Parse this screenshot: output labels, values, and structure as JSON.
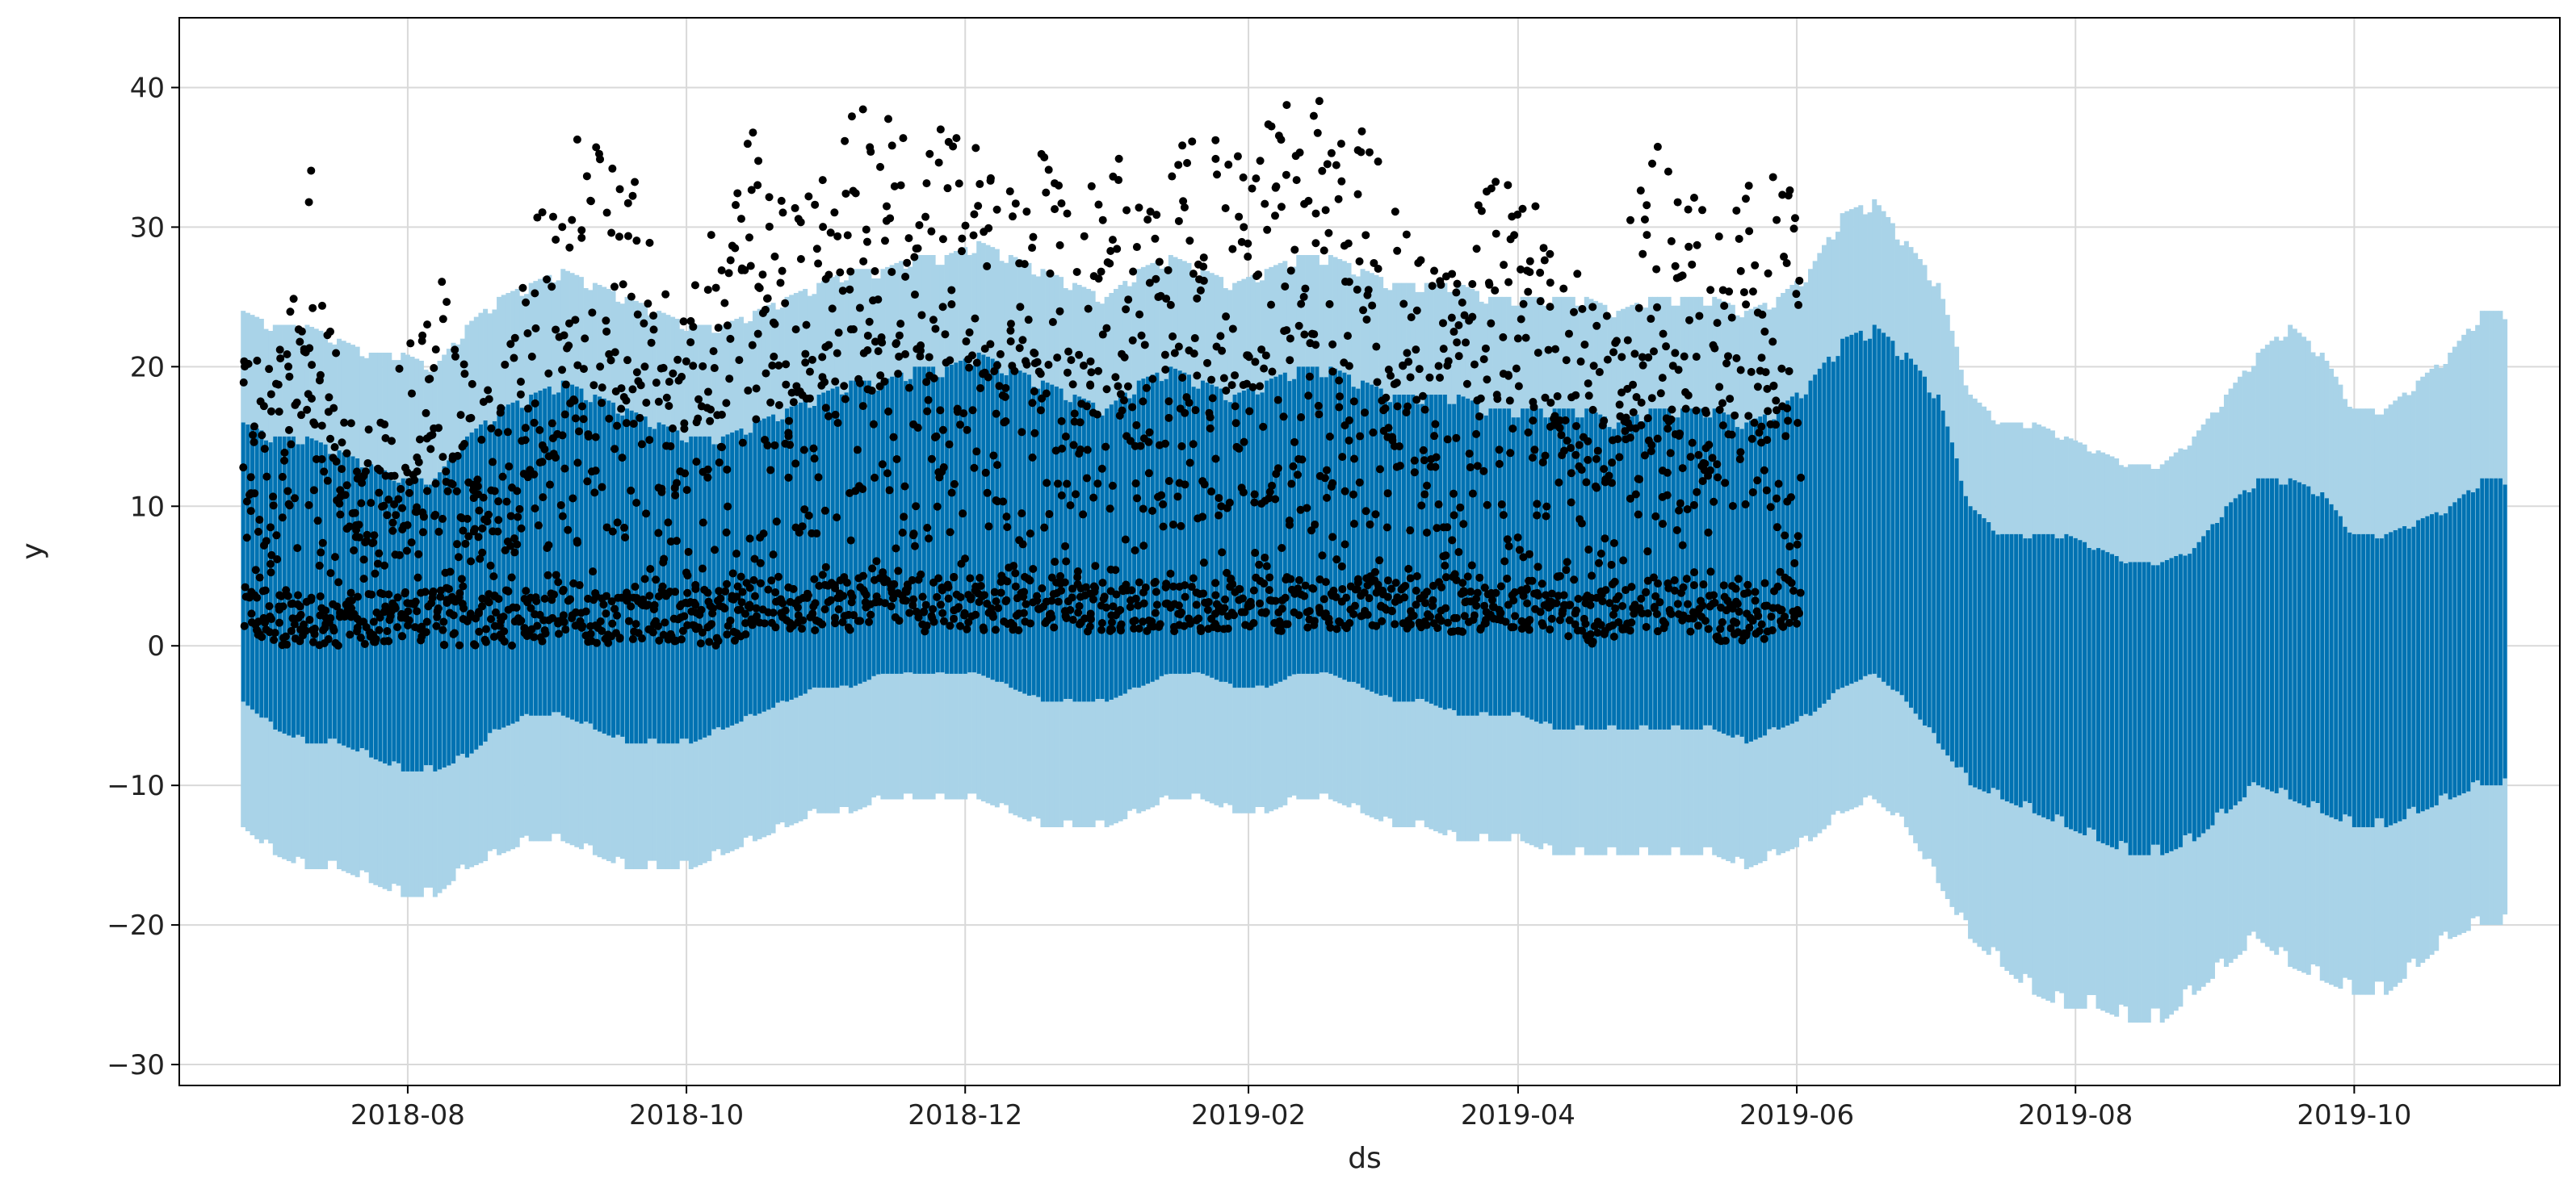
{
  "chart_data": {
    "type": "scatter",
    "title": "",
    "xlabel": "ds",
    "ylabel": "y",
    "x_axis_type": "date",
    "xlim": [
      "2018-06-12",
      "2019-11-15"
    ],
    "ylim": [
      -31.5,
      45
    ],
    "x_ticks": [
      "2018-08",
      "2018-10",
      "2018-12",
      "2019-02",
      "2019-04",
      "2019-06",
      "2019-08",
      "2019-10"
    ],
    "y_ticks": [
      40,
      30,
      20,
      10,
      0,
      -10,
      -20,
      -30
    ],
    "y_tick_labels": [
      "40",
      "30",
      "20",
      "10",
      "0",
      "−10",
      "−20",
      "−30"
    ],
    "grid": true,
    "legend": null,
    "colors": {
      "observed": "#000000",
      "forecast": "#0072B2",
      "uncertainty_band": "#A9D3E8",
      "grid": "#d9d9d9",
      "axes": "#000000"
    },
    "observed_range": [
      "2018-06-26",
      "2019-06-01"
    ],
    "forecast_range": [
      "2018-06-26",
      "2019-11-03"
    ],
    "weekly_trend": {
      "dates": [
        "2018-06-26",
        "2018-07-03",
        "2018-07-10",
        "2018-07-17",
        "2018-07-24",
        "2018-07-31",
        "2018-08-07",
        "2018-08-14",
        "2018-08-21",
        "2018-08-28",
        "2018-09-04",
        "2018-09-11",
        "2018-09-18",
        "2018-09-25",
        "2018-10-02",
        "2018-10-09",
        "2018-10-16",
        "2018-10-23",
        "2018-10-30",
        "2018-11-06",
        "2018-11-13",
        "2018-11-20",
        "2018-11-27",
        "2018-12-04",
        "2018-12-11",
        "2018-12-18",
        "2018-12-25",
        "2019-01-01",
        "2019-01-08",
        "2019-01-15",
        "2019-01-22",
        "2019-01-29",
        "2019-02-05",
        "2019-02-12",
        "2019-02-19",
        "2019-02-26",
        "2019-03-05",
        "2019-03-12",
        "2019-03-19",
        "2019-03-26",
        "2019-04-02",
        "2019-04-09",
        "2019-04-16",
        "2019-04-23",
        "2019-04-30",
        "2019-05-07",
        "2019-05-14",
        "2019-05-21",
        "2019-05-28",
        "2019-06-04",
        "2019-06-11",
        "2019-06-18",
        "2019-06-25",
        "2019-07-02",
        "2019-07-09",
        "2019-07-16",
        "2019-07-23",
        "2019-07-30",
        "2019-08-06",
        "2019-08-13",
        "2019-08-20",
        "2019-08-27",
        "2019-09-03",
        "2019-09-10",
        "2019-09-17",
        "2019-09-24",
        "2019-10-01",
        "2019-10-08",
        "2019-10-15",
        "2019-10-22",
        "2019-10-29"
      ],
      "yhat_max": [
        16,
        15,
        15,
        14,
        13,
        12,
        12,
        15,
        17,
        18,
        19,
        18,
        17,
        16,
        15,
        15,
        16,
        17,
        18,
        19,
        19,
        20,
        20,
        21,
        20,
        19,
        18,
        17,
        19,
        20,
        19,
        18,
        19,
        20,
        20,
        19,
        18,
        18,
        18,
        17,
        17,
        17,
        17,
        16,
        17,
        17,
        17,
        16,
        17,
        19,
        22,
        23,
        21,
        18,
        10,
        8,
        8,
        8,
        7,
        6,
        6,
        7,
        10,
        12,
        12,
        11,
        8,
        8,
        9,
        10,
        12
      ],
      "yhat_min": [
        -4,
        -6,
        -7,
        -7,
        -8,
        -9,
        -9,
        -8,
        -6,
        -5,
        -5,
        -6,
        -7,
        -7,
        -7,
        -6,
        -5,
        -4,
        -3,
        -3,
        -2,
        -2,
        -2,
        -2,
        -3,
        -4,
        -4,
        -4,
        -3,
        -2,
        -2,
        -3,
        -3,
        -2,
        -2,
        -3,
        -4,
        -4,
        -5,
        -5,
        -5,
        -6,
        -6,
        -6,
        -6,
        -6,
        -6,
        -7,
        -6,
        -5,
        -3,
        -2,
        -4,
        -7,
        -10,
        -11,
        -12,
        -13,
        -14,
        -15,
        -15,
        -14,
        -12,
        -10,
        -11,
        -12,
        -13,
        -13,
        -12,
        -11,
        -10
      ],
      "band_max": [
        24,
        23,
        23,
        22,
        21,
        21,
        20,
        23,
        25,
        26,
        27,
        26,
        25,
        24,
        23,
        23,
        24,
        25,
        26,
        27,
        27,
        28,
        28,
        29,
        28,
        27,
        26,
        25,
        27,
        28,
        27,
        26,
        27,
        28,
        28,
        27,
        26,
        26,
        26,
        25,
        25,
        25,
        25,
        24,
        25,
        25,
        25,
        24,
        25,
        27,
        31,
        32,
        29,
        26,
        18,
        16,
        16,
        15,
        14,
        13,
        13,
        15,
        18,
        21,
        23,
        21,
        17,
        17,
        19,
        21,
        24
      ],
      "band_min": [
        -13,
        -15,
        -16,
        -16,
        -17,
        -18,
        -18,
        -16,
        -15,
        -14,
        -14,
        -15,
        -16,
        -16,
        -16,
        -15,
        -14,
        -13,
        -12,
        -12,
        -11,
        -11,
        -11,
        -11,
        -12,
        -13,
        -13,
        -13,
        -12,
        -11,
        -11,
        -12,
        -12,
        -11,
        -11,
        -12,
        -13,
        -13,
        -14,
        -14,
        -14,
        -15,
        -15,
        -15,
        -15,
        -15,
        -15,
        -16,
        -15,
        -14,
        -12,
        -11,
        -13,
        -17,
        -21,
        -23,
        -25,
        -26,
        -26,
        -27,
        -27,
        -25,
        -23,
        -21,
        -23,
        -24,
        -25,
        -25,
        -23,
        -21,
        -20
      ]
    },
    "weekly_observed": {
      "dates": [
        "2018-06-26",
        "2018-07-03",
        "2018-07-10",
        "2018-07-17",
        "2018-07-24",
        "2018-07-31",
        "2018-08-07",
        "2018-08-14",
        "2018-08-21",
        "2018-08-28",
        "2018-09-04",
        "2018-09-11",
        "2018-09-18",
        "2018-09-25",
        "2018-10-02",
        "2018-10-09",
        "2018-10-16",
        "2018-10-23",
        "2018-10-30",
        "2018-11-06",
        "2018-11-13",
        "2018-11-20",
        "2018-11-27",
        "2018-12-04",
        "2018-12-11",
        "2018-12-18",
        "2018-12-25",
        "2019-01-01",
        "2019-01-08",
        "2019-01-15",
        "2019-01-22",
        "2019-01-29",
        "2019-02-05",
        "2019-02-12",
        "2019-02-19",
        "2019-02-26",
        "2019-03-05",
        "2019-03-12",
        "2019-03-19",
        "2019-03-26",
        "2019-04-02",
        "2019-04-09",
        "2019-04-16",
        "2019-04-23",
        "2019-04-30",
        "2019-05-07",
        "2019-05-14",
        "2019-05-21",
        "2019-05-28"
      ],
      "y_max": [
        21,
        20,
        36,
        20,
        15,
        21,
        27,
        21,
        19,
        30,
        37,
        36,
        35,
        27,
        28,
        31,
        40,
        33,
        34,
        40,
        38,
        37,
        37,
        36,
        36,
        36,
        32,
        37,
        32,
        36,
        37,
        38,
        38,
        41,
        38,
        37,
        33,
        28,
        27,
        35,
        32,
        31,
        24,
        28,
        38,
        33,
        30,
        33,
        34
      ],
      "y_min": [
        1,
        0,
        0,
        0,
        0,
        0,
        0,
        0,
        0,
        0,
        1,
        0,
        0,
        0,
        0,
        0,
        1,
        1,
        1,
        1,
        2,
        1,
        1,
        1,
        1,
        1,
        1,
        1,
        1,
        1,
        1,
        1,
        1,
        1,
        1,
        1,
        1,
        1,
        1,
        1,
        1,
        1,
        0,
        0,
        1,
        1,
        0,
        0,
        1
      ]
    }
  }
}
